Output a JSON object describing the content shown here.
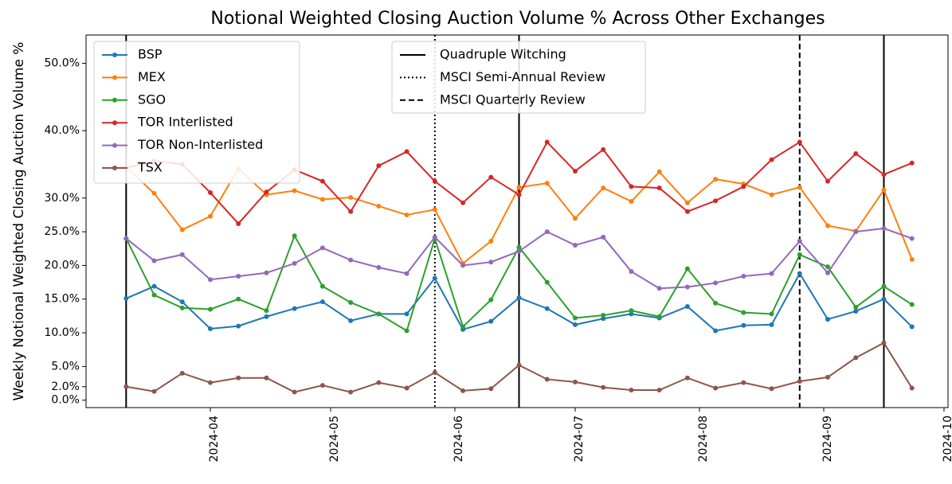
{
  "chart_data": {
    "type": "line",
    "title": "Notional Weighted Closing Auction Volume % Across Other Exchanges",
    "y_label": "Weekly Notional Weighted Closing Auction Volume %",
    "x": [
      "2024-03-11",
      "2024-03-18",
      "2024-03-25",
      "2024-04-01",
      "2024-04-08",
      "2024-04-15",
      "2024-04-22",
      "2024-04-29",
      "2024-05-06",
      "2024-05-13",
      "2024-05-20",
      "2024-05-27",
      "2024-06-03",
      "2024-06-10",
      "2024-06-17",
      "2024-06-24",
      "2024-07-01",
      "2024-07-08",
      "2024-07-15",
      "2024-07-22",
      "2024-07-29",
      "2024-08-05",
      "2024-08-12",
      "2024-08-19",
      "2024-08-26",
      "2024-09-02",
      "2024-09-09",
      "2024-09-16",
      "2024-09-23"
    ],
    "series": [
      {
        "name": "BSP",
        "color": "#1f77b4",
        "values": [
          15.1,
          16.9,
          14.6,
          10.6,
          11.0,
          12.4,
          13.6,
          14.6,
          11.8,
          12.8,
          12.8,
          18.1,
          10.5,
          11.7,
          15.2,
          13.6,
          11.2,
          12.1,
          12.8,
          12.2,
          13.9,
          10.3,
          11.1,
          11.2,
          18.8,
          12.0,
          13.2,
          15.0,
          10.9
        ]
      },
      {
        "name": "MEX",
        "color": "#ff7f0e",
        "values": [
          34.6,
          30.7,
          25.3,
          27.3,
          34.4,
          30.5,
          31.1,
          29.8,
          30.1,
          28.8,
          27.5,
          28.3,
          20.3,
          23.6,
          31.6,
          32.2,
          27.0,
          31.5,
          29.5,
          33.9,
          29.3,
          32.8,
          32.1,
          30.5,
          31.6,
          25.9,
          25.1,
          31.2,
          20.9
        ]
      },
      {
        "name": "SGO",
        "color": "#2ca02c",
        "values": [
          24.0,
          15.6,
          13.7,
          13.5,
          15.0,
          13.3,
          24.4,
          16.9,
          14.5,
          12.8,
          10.3,
          24.0,
          10.9,
          14.9,
          22.7,
          17.5,
          12.2,
          12.6,
          13.3,
          12.4,
          19.5,
          14.4,
          13.0,
          12.8,
          21.6,
          19.8,
          13.8,
          16.9,
          14.2
        ]
      },
      {
        "name": "TOR Interlisted",
        "color": "#d62728",
        "values": [
          34.5,
          35.5,
          35.0,
          30.8,
          26.2,
          30.9,
          34.2,
          32.5,
          28.0,
          34.8,
          36.9,
          32.5,
          29.3,
          33.1,
          30.5,
          38.3,
          34.0,
          37.2,
          31.7,
          31.5,
          28.0,
          29.6,
          31.7,
          35.7,
          38.3,
          32.5,
          36.6,
          33.5,
          35.2
        ]
      },
      {
        "name": "TOR Non-Interlisted",
        "color": "#9467bd",
        "values": [
          24.0,
          20.7,
          21.6,
          17.9,
          18.4,
          18.9,
          20.3,
          22.6,
          20.8,
          19.7,
          18.8,
          24.2,
          20.0,
          20.5,
          22.1,
          25.0,
          23.0,
          24.2,
          19.1,
          16.6,
          16.8,
          17.4,
          18.4,
          18.8,
          23.6,
          18.9,
          25.0,
          25.5,
          24.0
        ]
      },
      {
        "name": "TSX",
        "color": "#8c564b",
        "values": [
          2.0,
          1.3,
          4.0,
          2.6,
          3.3,
          3.3,
          1.2,
          2.2,
          1.2,
          2.6,
          1.8,
          4.1,
          1.4,
          1.7,
          5.2,
          3.1,
          2.7,
          1.9,
          1.5,
          1.5,
          3.3,
          1.8,
          2.6,
          1.7,
          2.8,
          3.4,
          6.3,
          8.5,
          1.8
        ]
      }
    ],
    "vlines": [
      {
        "name": "Quadruple Witching",
        "style": "solid",
        "dates": [
          "2024-03-11",
          "2024-06-17",
          "2024-09-16"
        ]
      },
      {
        "name": "MSCI Semi-Annual Review",
        "style": "dotted",
        "dates": [
          "2024-05-27"
        ]
      },
      {
        "name": "MSCI Quarterly Review",
        "style": "dashed",
        "dates": [
          "2024-08-26"
        ]
      }
    ],
    "xlim": [
      "2024-03-01",
      "2024-10-02"
    ],
    "xticks": [
      {
        "value": "2024-04-01",
        "label": "2024-04"
      },
      {
        "value": "2024-05-01",
        "label": "2024-05"
      },
      {
        "value": "2024-06-01",
        "label": "2024-06"
      },
      {
        "value": "2024-07-01",
        "label": "2024-07"
      },
      {
        "value": "2024-08-01",
        "label": "2024-08"
      },
      {
        "value": "2024-09-01",
        "label": "2024-09"
      },
      {
        "value": "2024-10-01",
        "label": "2024-10"
      }
    ],
    "ylim": [
      -1.1,
      54.2
    ],
    "yticks": [
      {
        "value": 0,
        "label": "0.0%"
      },
      {
        "value": 2,
        "label": "2.0%"
      },
      {
        "value": 5,
        "label": "5.0%"
      },
      {
        "value": 10,
        "label": "10.0%"
      },
      {
        "value": 15,
        "label": "15.0%"
      },
      {
        "value": 20,
        "label": "20.0%"
      },
      {
        "value": 25,
        "label": "25.0%"
      },
      {
        "value": 30,
        "label": "30.0%"
      },
      {
        "value": 40,
        "label": "40.0%"
      },
      {
        "value": 50,
        "label": "50.0%"
      }
    ],
    "legend": "upper left",
    "vline_legend": "upper center"
  }
}
